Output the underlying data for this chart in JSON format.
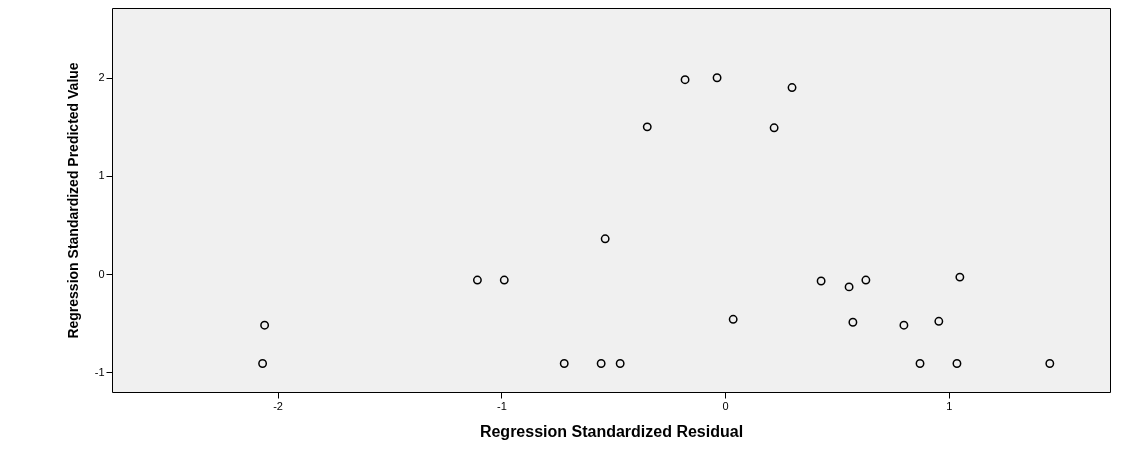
{
  "chart_data": {
    "type": "scatter",
    "xlabel": "Regression Standardized Residual",
    "ylabel": "Regression Standardized Predicted Value",
    "x": [
      -2.058,
      -2.067,
      -1.107,
      -0.987,
      -0.719,
      -0.554,
      -0.469,
      -0.536,
      -0.348,
      -0.179,
      -0.036,
      0.036,
      0.219,
      0.299,
      0.429,
      0.554,
      0.571,
      0.629,
      0.799,
      0.871,
      0.955,
      1.036,
      1.049,
      1.451
    ],
    "values": [
      -0.52,
      -0.91,
      -0.06,
      -0.06,
      -0.91,
      -0.91,
      -0.91,
      0.36,
      1.5,
      1.98,
      2.0,
      -0.46,
      1.49,
      1.9,
      -0.07,
      -0.13,
      -0.49,
      -0.06,
      -0.52,
      -0.91,
      -0.48,
      -0.91,
      -0.03,
      -0.91
    ],
    "color": "#000000",
    "marker": "circle",
    "grid": false,
    "xlim": [
      -2.74,
      1.72
    ],
    "ylim": [
      -1.2,
      2.71
    ],
    "xticks": [
      -2,
      -1,
      0,
      1
    ],
    "yticks": [
      -1,
      0,
      1,
      2
    ]
  }
}
